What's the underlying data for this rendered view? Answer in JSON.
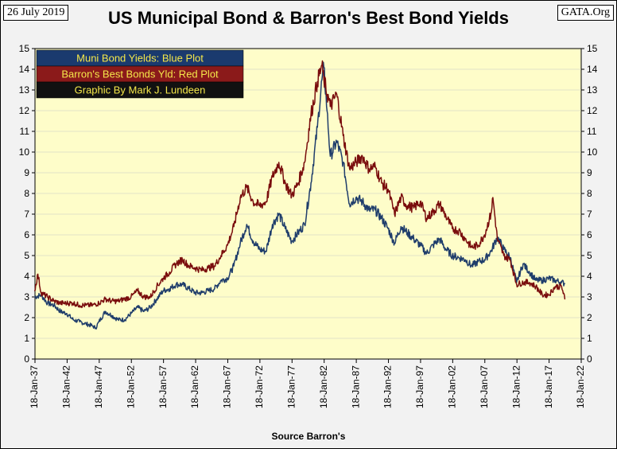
{
  "header": {
    "date": "26 July 2019",
    "brand": "GATA.Org",
    "title": "US Municipal Bond & Barron's Best Bond Yields"
  },
  "footer": {
    "source": "Source Barron's"
  },
  "legend": [
    {
      "text": "Muni Bond Yields: Blue Plot",
      "bg": "#1a3a6e"
    },
    {
      "text": "Barron's Best Bonds Yld: Red Plot",
      "bg": "#8b1a1a"
    },
    {
      "text": "Graphic By Mark J. Lundeen",
      "bg": "#111111"
    }
  ],
  "colors": {
    "plot_bg": "#fefdc9",
    "muni": "#1f3d6b",
    "barrons": "#7a0d0d"
  },
  "chart_data": {
    "type": "line",
    "title": "US Municipal Bond & Barron's Best Bond Yields",
    "xlabel": "Source Barron's",
    "ylabel": "",
    "ylim": [
      0,
      15
    ],
    "xlim": [
      1937.05,
      2022.05
    ],
    "y_ticks": [
      "0",
      "1",
      "2",
      "3",
      "4",
      "5",
      "6",
      "7",
      "8",
      "9",
      "10",
      "11",
      "12",
      "13",
      "14",
      "15"
    ],
    "x_ticks": [
      {
        "label": "18-Jan-37",
        "year": 1937.05
      },
      {
        "label": "18-Jan-42",
        "year": 1942.05
      },
      {
        "label": "18-Jan-47",
        "year": 1947.05
      },
      {
        "label": "18-Jan-52",
        "year": 1952.05
      },
      {
        "label": "18-Jan-57",
        "year": 1957.05
      },
      {
        "label": "18-Jan-62",
        "year": 1962.05
      },
      {
        "label": "18-Jan-67",
        "year": 1967.05
      },
      {
        "label": "18-Jan-72",
        "year": 1972.05
      },
      {
        "label": "18-Jan-77",
        "year": 1977.05
      },
      {
        "label": "18-Jan-82",
        "year": 1982.05
      },
      {
        "label": "18-Jan-87",
        "year": 1987.05
      },
      {
        "label": "18-Jan-92",
        "year": 1992.05
      },
      {
        "label": "18-Jan-97",
        "year": 1997.05
      },
      {
        "label": "18-Jan-02",
        "year": 2002.05
      },
      {
        "label": "18-Jan-07",
        "year": 2007.05
      },
      {
        "label": "18-Jan-12",
        "year": 2012.05
      },
      {
        "label": "18-Jan-17",
        "year": 2017.05
      },
      {
        "label": "18-Jan-22",
        "year": 2022.05
      }
    ],
    "series": [
      {
        "name": "Muni Bond Yields",
        "color": "#1f3d6b",
        "x": [
          1937.0,
          1938.0,
          1939.0,
          1940.0,
          1941.0,
          1942.0,
          1943.0,
          1944.0,
          1945.0,
          1946.0,
          1946.5,
          1947.0,
          1948.0,
          1949.0,
          1950.0,
          1951.0,
          1952.0,
          1953.0,
          1954.0,
          1955.0,
          1956.0,
          1957.0,
          1958.0,
          1959.0,
          1960.0,
          1961.0,
          1962.0,
          1963.0,
          1964.0,
          1965.0,
          1966.0,
          1967.0,
          1968.0,
          1969.0,
          1970.0,
          1971.0,
          1972.0,
          1973.0,
          1974.0,
          1975.0,
          1976.0,
          1977.0,
          1978.0,
          1979.0,
          1980.0,
          1981.0,
          1981.7,
          1982.0,
          1982.5,
          1983.0,
          1984.0,
          1985.0,
          1986.0,
          1987.0,
          1988.0,
          1989.0,
          1990.0,
          1991.0,
          1992.0,
          1993.0,
          1994.0,
          1995.0,
          1996.0,
          1997.0,
          1998.0,
          1999.0,
          2000.0,
          2001.0,
          2002.0,
          2003.0,
          2004.0,
          2005.0,
          2006.0,
          2007.0,
          2008.0,
          2009.0,
          2010.0,
          2011.0,
          2012.0,
          2013.0,
          2014.0,
          2015.0,
          2016.0,
          2017.0,
          2018.0,
          2019.0,
          2019.5
        ],
        "values": [
          3.0,
          3.1,
          2.7,
          2.6,
          2.3,
          2.2,
          1.9,
          1.8,
          1.7,
          1.6,
          1.5,
          1.8,
          2.3,
          2.1,
          1.9,
          1.9,
          2.2,
          2.5,
          2.3,
          2.5,
          2.9,
          3.3,
          3.4,
          3.6,
          3.6,
          3.4,
          3.2,
          3.2,
          3.3,
          3.4,
          3.8,
          3.9,
          4.5,
          5.6,
          6.5,
          5.7,
          5.3,
          5.2,
          6.5,
          7.0,
          6.3,
          5.7,
          6.1,
          6.5,
          8.5,
          11.2,
          13.5,
          14.1,
          12.0,
          9.8,
          10.5,
          9.5,
          7.5,
          7.8,
          7.6,
          7.2,
          7.2,
          6.8,
          6.3,
          5.6,
          6.4,
          6.1,
          5.8,
          5.5,
          5.1,
          5.5,
          5.8,
          5.3,
          5.0,
          4.9,
          4.8,
          4.5,
          4.7,
          4.8,
          5.2,
          5.9,
          5.3,
          4.9,
          3.7,
          4.6,
          4.2,
          3.8,
          3.8,
          3.9,
          3.8,
          3.7,
          3.65
        ]
      },
      {
        "name": "Barron's Best Bonds Yld",
        "color": "#7a0d0d",
        "x": [
          1937.0,
          1937.5,
          1938.0,
          1939.0,
          1940.0,
          1941.0,
          1942.0,
          1943.0,
          1944.0,
          1945.0,
          1946.0,
          1947.0,
          1948.0,
          1949.0,
          1950.0,
          1951.0,
          1952.0,
          1953.0,
          1954.0,
          1955.0,
          1956.0,
          1957.0,
          1958.0,
          1959.0,
          1960.0,
          1961.0,
          1962.0,
          1963.0,
          1964.0,
          1965.0,
          1966.0,
          1967.0,
          1968.0,
          1969.0,
          1970.0,
          1971.0,
          1972.0,
          1973.0,
          1974.0,
          1975.0,
          1976.0,
          1977.0,
          1978.0,
          1979.0,
          1980.0,
          1981.0,
          1981.7,
          1982.0,
          1983.0,
          1984.0,
          1985.0,
          1986.0,
          1987.0,
          1988.0,
          1989.0,
          1990.0,
          1991.0,
          1992.0,
          1993.0,
          1994.0,
          1995.0,
          1996.0,
          1997.0,
          1998.0,
          1999.0,
          2000.0,
          2001.0,
          2002.0,
          2003.0,
          2004.0,
          2005.0,
          2006.0,
          2007.0,
          2008.0,
          2008.3,
          2009.0,
          2010.0,
          2011.0,
          2012.0,
          2013.0,
          2014.0,
          2015.0,
          2016.0,
          2017.0,
          2018.0,
          2019.0,
          2019.5
        ],
        "values": [
          3.3,
          4.1,
          3.2,
          3.0,
          2.8,
          2.7,
          2.7,
          2.7,
          2.6,
          2.6,
          2.6,
          2.7,
          2.9,
          2.8,
          2.8,
          2.9,
          3.0,
          3.3,
          3.0,
          3.0,
          3.5,
          3.9,
          4.2,
          4.6,
          4.8,
          4.5,
          4.4,
          4.3,
          4.4,
          4.5,
          5.0,
          5.5,
          6.4,
          7.8,
          8.3,
          7.6,
          7.4,
          7.6,
          8.8,
          9.5,
          8.5,
          7.9,
          8.5,
          9.5,
          11.8,
          13.4,
          14.2,
          13.5,
          12.2,
          12.8,
          10.8,
          9.2,
          9.5,
          9.8,
          9.2,
          9.3,
          8.5,
          8.2,
          7.0,
          7.8,
          7.4,
          7.3,
          7.6,
          6.8,
          7.1,
          7.5,
          6.9,
          6.3,
          6.2,
          5.8,
          5.4,
          5.5,
          6.0,
          7.0,
          7.8,
          5.8,
          5.0,
          4.8,
          3.6,
          3.7,
          3.7,
          3.5,
          3.1,
          3.1,
          3.5,
          3.5,
          2.9
        ]
      }
    ]
  }
}
